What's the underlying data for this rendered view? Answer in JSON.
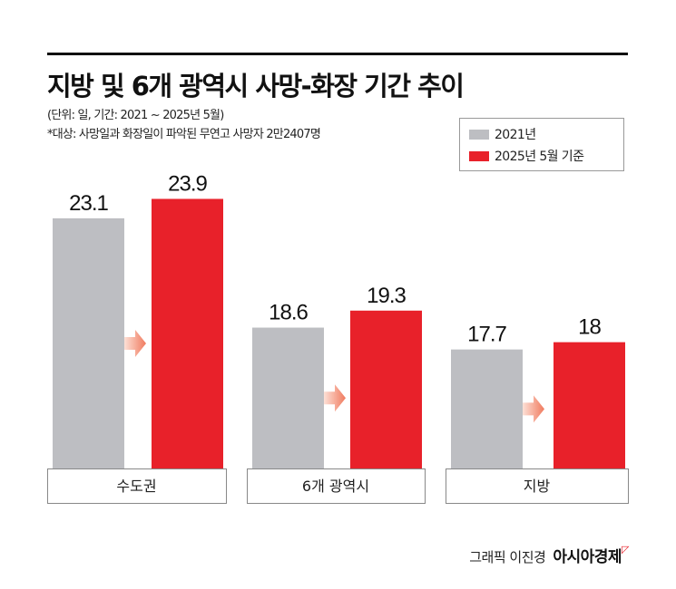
{
  "chart_data": {
    "type": "bar",
    "title": "지방 및 6개 광역시 사망-화장 기간 추이",
    "subtitle": "(단위: 일, 기간: 2021 ~ 2025년 5월)",
    "note": "*대상: 사망일과 화장일이 파악된 무연고 사망자 2만2407명",
    "categories": [
      "수도권",
      "6개 광역시",
      "지방"
    ],
    "series": [
      {
        "name": "2021년",
        "values": [
          23.1,
          18.6,
          17.7
        ],
        "color": "#bdbec2"
      },
      {
        "name": "2025년 5월 기준",
        "values": [
          23.9,
          19.3,
          18
        ],
        "color": "#e8212a"
      }
    ],
    "value_labels": [
      [
        "23.1",
        "18.6",
        "17.7"
      ],
      [
        "23.9",
        "19.3",
        "18"
      ]
    ],
    "ylim": [
      12.8,
      25
    ],
    "grid": false,
    "legend": "top-right",
    "xlabel": "",
    "ylabel": ""
  },
  "credit": {
    "text": "그래픽 이진경",
    "brand": "아시아경제"
  }
}
